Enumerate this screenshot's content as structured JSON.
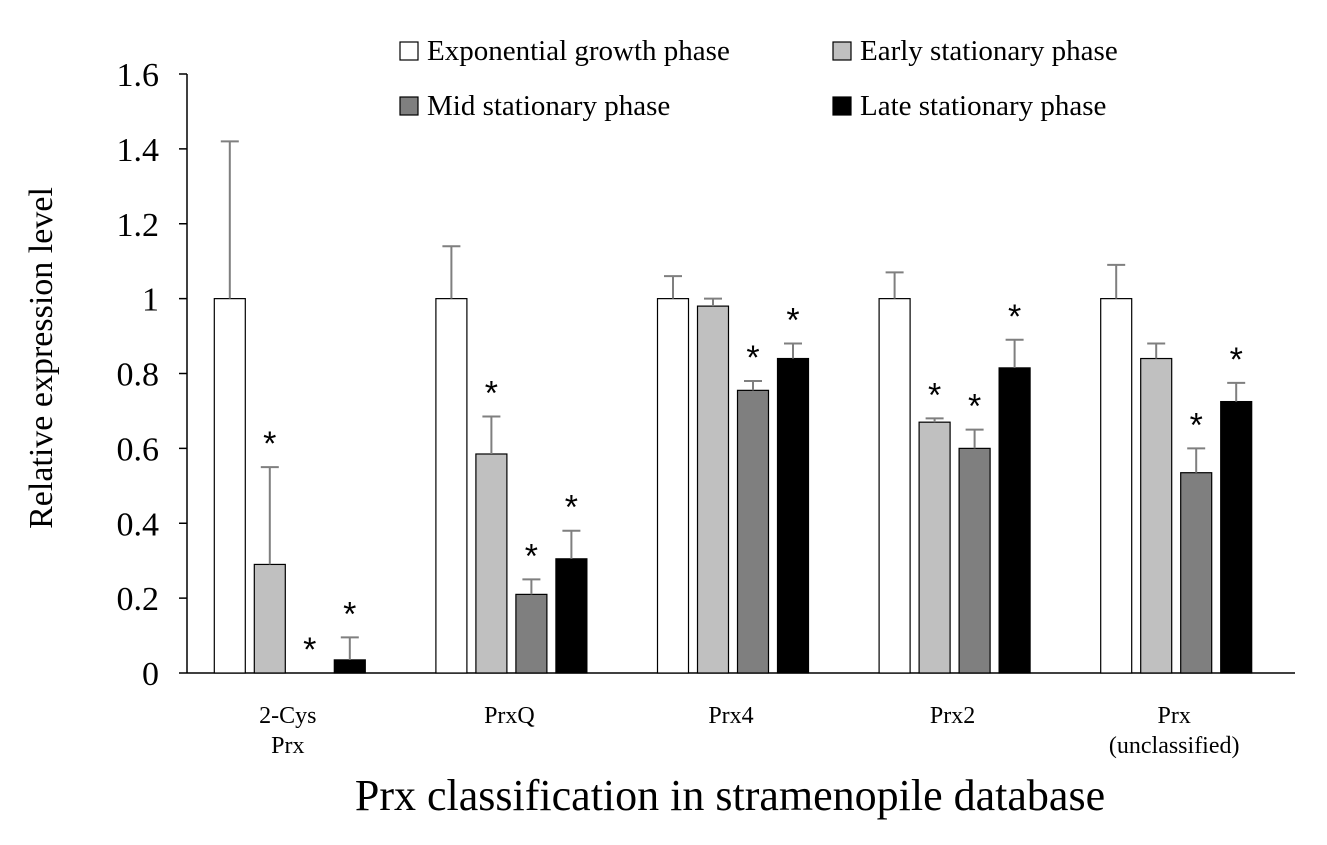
{
  "chart_data": {
    "type": "bar",
    "title": "",
    "xlabel": "Prx classification in stramenopile database",
    "ylabel": "Relative  expression  level",
    "ylim": [
      0,
      1.6
    ],
    "yticks": [
      "0",
      "0.2",
      "0.4",
      "0.6",
      "0.8",
      "1",
      "1.2",
      "1.4",
      "1.6"
    ],
    "categories": [
      [
        "2-Cys",
        "Prx"
      ],
      [
        "PrxQ"
      ],
      [
        "Prx4"
      ],
      [
        "Prx2"
      ],
      [
        "Prx",
        "(unclassified)"
      ]
    ],
    "significance_marker": "*",
    "series": [
      {
        "name": "Exponential growth phase",
        "color": "#ffffff",
        "values": [
          1.0,
          1.0,
          1.0,
          1.0,
          1.0
        ],
        "errors": [
          0.42,
          0.14,
          0.06,
          0.07,
          0.09
        ],
        "significant": [
          false,
          false,
          false,
          false,
          false
        ]
      },
      {
        "name": "Early  stationary phase",
        "color": "#c0c0c0",
        "values": [
          0.29,
          0.585,
          0.98,
          0.67,
          0.84
        ],
        "errors": [
          0.26,
          0.1,
          0.02,
          0.01,
          0.04
        ],
        "significant": [
          true,
          true,
          false,
          true,
          false
        ]
      },
      {
        "name": "Mid stationary phase",
        "color": "#7f7f7f",
        "values": [
          0.0,
          0.21,
          0.755,
          0.6,
          0.535
        ],
        "errors": [
          0.0,
          0.04,
          0.025,
          0.05,
          0.065
        ],
        "significant": [
          true,
          true,
          true,
          true,
          true
        ]
      },
      {
        "name": "Late stationary phase",
        "color": "#000000",
        "values": [
          0.035,
          0.305,
          0.84,
          0.815,
          0.725
        ],
        "errors": [
          0.06,
          0.075,
          0.04,
          0.075,
          0.05
        ],
        "significant": [
          true,
          true,
          true,
          true,
          true
        ]
      }
    ],
    "legend": "top, two columns"
  }
}
